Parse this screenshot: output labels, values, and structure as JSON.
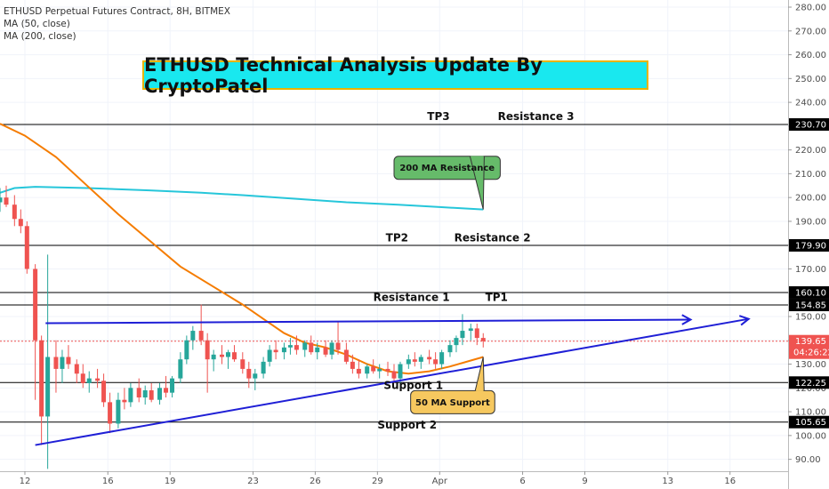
{
  "header": {
    "symbol_line": "ETHUSD Perpetual Futures Contract, 8H, BITMEX",
    "indicators": [
      "MA (50, close)",
      "MA (200, close)"
    ],
    "title_banner": "ETHUSD Technical Analysis Update By CryptoPatel"
  },
  "colors": {
    "up": "#26a69a",
    "down": "#ef5350",
    "ma50": "#f57c00",
    "ma200": "#26c6da",
    "trend": "#1f1fd6",
    "level_line": "#000000",
    "price_tag": "#ef5350",
    "title_bg": "#19e8ef",
    "callout_green": "#66bb6a",
    "callout_yellow": "#f6c85f"
  },
  "chart_data": {
    "type": "candlestick",
    "title": "ETHUSD Technical Analysis Update By CryptoPatel",
    "x_ticks": [
      "12",
      "16",
      "19",
      "23",
      "26",
      "29",
      "Apr",
      "6",
      "9",
      "13",
      "16"
    ],
    "x_tick_days": [
      12,
      16,
      19,
      23,
      26,
      29,
      32,
      36,
      39,
      43,
      46
    ],
    "y_ticks": [
      90,
      100,
      110,
      120,
      130,
      140,
      150,
      160,
      170,
      180,
      190,
      200,
      210,
      220,
      230,
      240,
      250,
      260,
      270,
      280
    ],
    "ylim": [
      85,
      283
    ],
    "xlim_days": [
      10.8,
      48.8
    ],
    "candles": [
      {
        "t": 10.8,
        "o": 198,
        "h": 204,
        "l": 194,
        "c": 200
      },
      {
        "t": 11.1,
        "o": 200,
        "h": 205,
        "l": 196,
        "c": 197
      },
      {
        "t": 11.5,
        "o": 197,
        "h": 201,
        "l": 188,
        "c": 191
      },
      {
        "t": 11.8,
        "o": 191,
        "h": 195,
        "l": 185,
        "c": 188
      },
      {
        "t": 12.1,
        "o": 188,
        "h": 190,
        "l": 168,
        "c": 170
      },
      {
        "t": 12.5,
        "o": 170,
        "h": 172,
        "l": 115,
        "c": 140
      },
      {
        "t": 12.8,
        "o": 140,
        "h": 142,
        "l": 96,
        "c": 108
      },
      {
        "t": 13.1,
        "o": 108,
        "h": 176,
        "l": 86,
        "c": 133
      },
      {
        "t": 13.5,
        "o": 133,
        "h": 140,
        "l": 118,
        "c": 128
      },
      {
        "t": 13.8,
        "o": 128,
        "h": 136,
        "l": 122,
        "c": 133
      },
      {
        "t": 14.1,
        "o": 133,
        "h": 138,
        "l": 128,
        "c": 130
      },
      {
        "t": 14.5,
        "o": 130,
        "h": 132,
        "l": 122,
        "c": 126
      },
      {
        "t": 14.8,
        "o": 126,
        "h": 130,
        "l": 120,
        "c": 122
      },
      {
        "t": 15.1,
        "o": 122,
        "h": 127,
        "l": 118,
        "c": 124
      },
      {
        "t": 15.5,
        "o": 124,
        "h": 128,
        "l": 120,
        "c": 123
      },
      {
        "t": 15.8,
        "o": 123,
        "h": 126,
        "l": 112,
        "c": 114
      },
      {
        "t": 16.1,
        "o": 114,
        "h": 118,
        "l": 101,
        "c": 105
      },
      {
        "t": 16.5,
        "o": 105,
        "h": 118,
        "l": 103,
        "c": 115
      },
      {
        "t": 16.8,
        "o": 115,
        "h": 120,
        "l": 111,
        "c": 114
      },
      {
        "t": 17.1,
        "o": 114,
        "h": 122,
        "l": 112,
        "c": 120
      },
      {
        "t": 17.5,
        "o": 120,
        "h": 124,
        "l": 114,
        "c": 116
      },
      {
        "t": 17.8,
        "o": 116,
        "h": 121,
        "l": 113,
        "c": 119
      },
      {
        "t": 18.1,
        "o": 119,
        "h": 122,
        "l": 114,
        "c": 115
      },
      {
        "t": 18.5,
        "o": 115,
        "h": 122,
        "l": 113,
        "c": 120
      },
      {
        "t": 18.8,
        "o": 120,
        "h": 125,
        "l": 116,
        "c": 118
      },
      {
        "t": 19.1,
        "o": 118,
        "h": 125,
        "l": 116,
        "c": 124
      },
      {
        "t": 19.5,
        "o": 124,
        "h": 135,
        "l": 122,
        "c": 132
      },
      {
        "t": 19.8,
        "o": 132,
        "h": 142,
        "l": 130,
        "c": 140
      },
      {
        "t": 20.1,
        "o": 140,
        "h": 146,
        "l": 136,
        "c": 144
      },
      {
        "t": 20.5,
        "o": 144,
        "h": 155,
        "l": 138,
        "c": 140
      },
      {
        "t": 20.8,
        "o": 140,
        "h": 143,
        "l": 118,
        "c": 132
      },
      {
        "t": 21.1,
        "o": 132,
        "h": 136,
        "l": 127,
        "c": 134
      },
      {
        "t": 21.5,
        "o": 134,
        "h": 138,
        "l": 130,
        "c": 133
      },
      {
        "t": 21.8,
        "o": 133,
        "h": 136,
        "l": 128,
        "c": 135
      },
      {
        "t": 22.1,
        "o": 135,
        "h": 138,
        "l": 131,
        "c": 132
      },
      {
        "t": 22.5,
        "o": 132,
        "h": 135,
        "l": 126,
        "c": 128
      },
      {
        "t": 22.8,
        "o": 128,
        "h": 131,
        "l": 120,
        "c": 124
      },
      {
        "t": 23.1,
        "o": 124,
        "h": 128,
        "l": 119,
        "c": 126
      },
      {
        "t": 23.5,
        "o": 126,
        "h": 133,
        "l": 124,
        "c": 131
      },
      {
        "t": 23.8,
        "o": 131,
        "h": 138,
        "l": 129,
        "c": 136
      },
      {
        "t": 24.1,
        "o": 136,
        "h": 140,
        "l": 132,
        "c": 135
      },
      {
        "t": 24.5,
        "o": 135,
        "h": 139,
        "l": 132,
        "c": 137
      },
      {
        "t": 24.8,
        "o": 137,
        "h": 141,
        "l": 134,
        "c": 138
      },
      {
        "t": 25.1,
        "o": 138,
        "h": 142,
        "l": 134,
        "c": 136
      },
      {
        "t": 25.5,
        "o": 136,
        "h": 140,
        "l": 133,
        "c": 139
      },
      {
        "t": 25.8,
        "o": 139,
        "h": 142,
        "l": 134,
        "c": 135
      },
      {
        "t": 26.1,
        "o": 135,
        "h": 139,
        "l": 132,
        "c": 137
      },
      {
        "t": 26.5,
        "o": 137,
        "h": 140,
        "l": 133,
        "c": 134
      },
      {
        "t": 26.8,
        "o": 134,
        "h": 140,
        "l": 132,
        "c": 139
      },
      {
        "t": 27.1,
        "o": 139,
        "h": 148,
        "l": 134,
        "c": 136
      },
      {
        "t": 27.5,
        "o": 136,
        "h": 139,
        "l": 130,
        "c": 131
      },
      {
        "t": 27.8,
        "o": 131,
        "h": 134,
        "l": 126,
        "c": 128
      },
      {
        "t": 28.1,
        "o": 128,
        "h": 132,
        "l": 124,
        "c": 126
      },
      {
        "t": 28.5,
        "o": 126,
        "h": 130,
        "l": 124,
        "c": 129
      },
      {
        "t": 28.8,
        "o": 129,
        "h": 132,
        "l": 126,
        "c": 127
      },
      {
        "t": 29.1,
        "o": 127,
        "h": 130,
        "l": 124,
        "c": 128
      },
      {
        "t": 29.5,
        "o": 128,
        "h": 131,
        "l": 125,
        "c": 127
      },
      {
        "t": 29.8,
        "o": 127,
        "h": 130,
        "l": 122,
        "c": 124
      },
      {
        "t": 30.1,
        "o": 124,
        "h": 131,
        "l": 122,
        "c": 130
      },
      {
        "t": 30.5,
        "o": 130,
        "h": 134,
        "l": 128,
        "c": 132
      },
      {
        "t": 30.8,
        "o": 132,
        "h": 135,
        "l": 129,
        "c": 131
      },
      {
        "t": 31.1,
        "o": 131,
        "h": 134,
        "l": 128,
        "c": 133
      },
      {
        "t": 31.5,
        "o": 133,
        "h": 136,
        "l": 130,
        "c": 132
      },
      {
        "t": 31.8,
        "o": 132,
        "h": 135,
        "l": 128,
        "c": 130
      },
      {
        "t": 32.1,
        "o": 130,
        "h": 136,
        "l": 128,
        "c": 135
      },
      {
        "t": 32.5,
        "o": 135,
        "h": 140,
        "l": 133,
        "c": 138
      },
      {
        "t": 32.8,
        "o": 138,
        "h": 142,
        "l": 135,
        "c": 141
      },
      {
        "t": 33.1,
        "o": 141,
        "h": 151,
        "l": 138,
        "c": 144
      },
      {
        "t": 33.5,
        "o": 144,
        "h": 147,
        "l": 140,
        "c": 145
      },
      {
        "t": 33.8,
        "o": 145,
        "h": 147,
        "l": 138,
        "c": 141
      },
      {
        "t": 34.1,
        "o": 141,
        "h": 143,
        "l": 137,
        "c": 139.65
      }
    ],
    "ma50": [
      [
        10.8,
        231
      ],
      [
        12.0,
        226
      ],
      [
        13.5,
        217
      ],
      [
        15.0,
        205
      ],
      [
        16.5,
        193
      ],
      [
        18.0,
        182
      ],
      [
        19.5,
        171
      ],
      [
        21.0,
        163
      ],
      [
        22.5,
        155
      ],
      [
        23.5,
        149
      ],
      [
        24.5,
        143
      ],
      [
        25.5,
        139
      ],
      [
        26.5,
        137
      ],
      [
        27.5,
        134
      ],
      [
        28.5,
        130
      ],
      [
        29.5,
        127
      ],
      [
        30.5,
        126
      ],
      [
        31.5,
        127
      ],
      [
        32.5,
        129
      ],
      [
        33.5,
        131.5
      ],
      [
        34.1,
        133
      ]
    ],
    "ma200": [
      [
        10.8,
        202
      ],
      [
        11.5,
        204
      ],
      [
        12.5,
        204.5
      ],
      [
        15.0,
        204
      ],
      [
        18.0,
        203
      ],
      [
        20.5,
        202
      ],
      [
        22.5,
        201
      ],
      [
        25.0,
        199.5
      ],
      [
        27.5,
        198
      ],
      [
        30.0,
        197
      ],
      [
        32.0,
        196
      ],
      [
        34.1,
        195
      ]
    ],
    "levels": [
      {
        "value": 230.7,
        "label": "230.70",
        "tag_fill": "#000000"
      },
      {
        "value": 179.9,
        "label": "179.90",
        "tag_fill": "#000000"
      },
      {
        "value": 160.1,
        "label": "160.10",
        "tag_fill": "#000000"
      },
      {
        "value": 154.85,
        "label": "154.85",
        "tag_fill": "#000000"
      },
      {
        "value": 122.25,
        "label": "122.25",
        "tag_fill": "#000000"
      },
      {
        "value": 105.65,
        "label": "105.65",
        "tag_fill": "#000000"
      }
    ],
    "level_labels": [
      {
        "text": "TP3",
        "t": 31.4,
        "v": 232.5
      },
      {
        "text": "Resistance 3",
        "t": 34.8,
        "v": 232.5
      },
      {
        "text": "TP2",
        "t": 29.4,
        "v": 181.5
      },
      {
        "text": "Resistance 2",
        "t": 32.7,
        "v": 181.5
      },
      {
        "text": "Resistance 1",
        "t": 28.8,
        "v": 156.5
      },
      {
        "text": "TP1",
        "t": 34.2,
        "v": 156.5
      },
      {
        "text": "Support 1",
        "t": 29.3,
        "v": 119.5
      },
      {
        "text": "Support 2",
        "t": 29.0,
        "v": 103.0
      }
    ],
    "last_price": {
      "value": 139.65,
      "label": "139.65",
      "countdown": "04:26:22"
    },
    "trendlines": [
      {
        "name": "upper",
        "from": [
          13.0,
          147.2
        ],
        "to": [
          44.1,
          148.7
        ],
        "arrow": true
      },
      {
        "name": "lower",
        "from": [
          12.5,
          96.0
        ],
        "to": [
          46.9,
          149.0
        ],
        "arrow": true
      }
    ],
    "callouts": [
      {
        "text": "200 MA Resistance",
        "box_t": 29.8,
        "box_v": 212.5,
        "point_t": 34.1,
        "point_v": 195,
        "fill": "#66bb6a"
      },
      {
        "text": "50 MA Support",
        "box_t": 30.6,
        "box_v": 114,
        "point_t": 34.1,
        "point_v": 133,
        "fill": "#f6c85f"
      }
    ]
  }
}
